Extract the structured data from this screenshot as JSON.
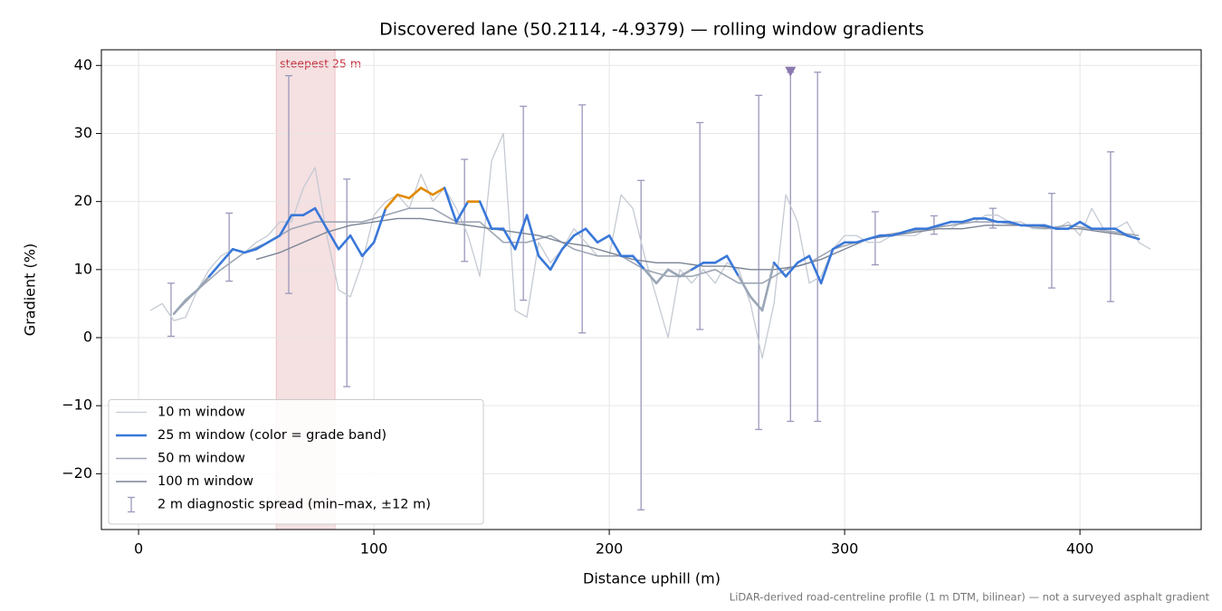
{
  "chart_data": {
    "type": "line",
    "title": "Discovered lane (50.2114, -4.9379) — rolling window gradients",
    "x_label": "Distance uphill (m)",
    "y_label": "Gradient (%)",
    "note": "LiDAR-derived road-centreline profile (1 m DTM, bilinear) — not a surveyed asphalt gradient",
    "xlim": [
      -15.8,
      451.5
    ],
    "ylim": [
      -28.2,
      42.3
    ],
    "xticks": [
      0,
      100,
      200,
      300,
      400
    ],
    "yticks": [
      {
        "value": -20,
        "label": "−20"
      },
      {
        "value": -10,
        "label": "−10"
      },
      0,
      10,
      20,
      30,
      40
    ],
    "grid": true,
    "legend": "lower left",
    "highlight": {
      "label": "steepest 25 m",
      "from": 58.5,
      "to": 83.5,
      "color": "#d9848c"
    },
    "series": [
      {
        "name": "10 m window",
        "color": "#c5cad3",
        "width": 1.3,
        "x": [
          5,
          10,
          15,
          20,
          25,
          30,
          35,
          40,
          45,
          50,
          55,
          60,
          65,
          70,
          75,
          80,
          85,
          90,
          95,
          100,
          105,
          110,
          115,
          120,
          125,
          130,
          135,
          140,
          145,
          150,
          155,
          160,
          165,
          170,
          175,
          180,
          185,
          190,
          195,
          200,
          205,
          210,
          215,
          220,
          225,
          230,
          235,
          240,
          245,
          250,
          255,
          260,
          265,
          270,
          275,
          280,
          285,
          290,
          295,
          300,
          305,
          310,
          315,
          320,
          325,
          330,
          335,
          340,
          345,
          350,
          355,
          360,
          365,
          370,
          375,
          380,
          385,
          390,
          395,
          400,
          405,
          410,
          415,
          420,
          425,
          430
        ],
        "values": [
          4,
          5,
          2.5,
          3,
          7,
          10,
          12,
          13,
          12.5,
          14,
          15,
          17,
          17,
          22,
          25,
          15,
          7,
          6,
          11,
          18,
          20,
          21,
          19,
          24,
          20,
          22,
          19,
          15,
          9,
          26,
          30,
          4,
          3,
          14,
          11,
          13,
          16,
          14,
          12,
          12,
          21,
          19,
          12,
          6,
          0,
          10,
          8,
          10,
          8,
          11,
          10,
          5,
          -3,
          5,
          21,
          17,
          8,
          9,
          13,
          15,
          15,
          14,
          14,
          15,
          15,
          15,
          16,
          16,
          16,
          17,
          17,
          18,
          18,
          17,
          17,
          16,
          16,
          16,
          17,
          15,
          19,
          16,
          16,
          17,
          14,
          13
        ]
      },
      {
        "name": "25 m window (color = grade band)",
        "color": "#3a78d8",
        "width": 2.6,
        "grade_bands": [
          {
            "below": 10,
            "color": "#9aa6b6"
          },
          {
            "below": 20,
            "color": "#3a78d8"
          },
          {
            "below": null,
            "color": "#e08a00"
          }
        ],
        "x": [
          15,
          20,
          25,
          30,
          35,
          40,
          45,
          50,
          55,
          60,
          65,
          70,
          75,
          80,
          85,
          90,
          95,
          100,
          105,
          110,
          115,
          120,
          125,
          130,
          135,
          140,
          145,
          150,
          155,
          160,
          165,
          170,
          175,
          180,
          185,
          190,
          195,
          200,
          205,
          210,
          215,
          220,
          225,
          230,
          235,
          240,
          245,
          250,
          255,
          260,
          265,
          270,
          275,
          280,
          285,
          290,
          295,
          300,
          305,
          310,
          315,
          320,
          325,
          330,
          335,
          340,
          345,
          350,
          355,
          360,
          365,
          370,
          375,
          380,
          385,
          390,
          395,
          400,
          405,
          410,
          415,
          420,
          425
        ],
        "values": [
          3.5,
          5.5,
          7,
          9,
          11,
          13,
          12.5,
          13,
          14,
          15,
          18,
          18,
          19,
          16,
          13,
          15,
          12,
          14,
          19,
          21,
          20.5,
          22,
          21,
          22,
          17,
          20,
          20,
          16,
          16,
          13,
          18,
          12,
          10,
          13,
          15,
          16,
          14,
          15,
          12,
          12,
          10,
          8,
          10,
          9,
          10,
          11,
          11,
          12,
          9,
          6,
          4,
          11,
          9,
          11,
          12,
          8,
          13,
          14,
          14,
          14.5,
          15,
          15,
          15.5,
          16,
          16,
          16.5,
          17,
          17,
          17.5,
          17.5,
          17,
          17,
          16.5,
          16.5,
          16.5,
          16,
          16,
          17,
          16,
          16,
          16,
          15,
          14.5
        ]
      },
      {
        "name": "50 m window",
        "color": "#9ea6b4",
        "width": 1.6,
        "x": [
          15,
          25,
          35,
          45,
          55,
          65,
          75,
          85,
          95,
          105,
          115,
          125,
          135,
          145,
          155,
          165,
          175,
          185,
          195,
          205,
          215,
          225,
          235,
          245,
          255,
          265,
          275,
          285,
          295,
          305,
          315,
          325,
          335,
          345,
          355,
          365,
          375,
          385,
          395,
          405,
          415,
          425
        ],
        "values": [
          3.5,
          7,
          10,
          12.5,
          14,
          16,
          17,
          17,
          17,
          18,
          19,
          19,
          17,
          17,
          14,
          14,
          15,
          13,
          12,
          12,
          10,
          9,
          9,
          10,
          8,
          8,
          10,
          11,
          13,
          14,
          15,
          15.5,
          16,
          16.5,
          17,
          17,
          16.5,
          16,
          16.5,
          16,
          15.5,
          15
        ]
      },
      {
        "name": "100 m window",
        "color": "#7a8494",
        "width": 1.4,
        "x": [
          50,
          60,
          70,
          80,
          90,
          100,
          110,
          120,
          130,
          140,
          150,
          160,
          170,
          180,
          190,
          200,
          210,
          220,
          230,
          240,
          250,
          260,
          270,
          280,
          290,
          300,
          310,
          320,
          330,
          340,
          350,
          360,
          370,
          380,
          390,
          400,
          410,
          420
        ],
        "values": [
          11.5,
          12.5,
          14,
          15.5,
          16.5,
          17,
          17.5,
          17.5,
          17,
          16.5,
          16,
          15.5,
          15,
          14,
          13.5,
          12.5,
          11.5,
          11,
          11,
          10.5,
          10.5,
          10,
          10,
          10.5,
          11.5,
          13,
          14.5,
          15,
          15.5,
          16,
          16,
          16.5,
          16.5,
          16.5,
          16,
          16,
          15.5,
          15
        ]
      }
    ],
    "spread": {
      "name": "2 m diagnostic spread (min–max, ±12 m)",
      "color": "#9a98bc",
      "x": [
        13.8,
        38.5,
        63.8,
        88.5,
        138.5,
        163.5,
        188.5,
        213.5,
        238.5,
        263.5,
        277,
        288.5,
        313,
        338,
        363,
        388,
        413
      ],
      "high": [
        8,
        18.3,
        38.5,
        23.3,
        26.2,
        34,
        34.2,
        23.1,
        31.6,
        35.6,
        39,
        39,
        18.5,
        17.9,
        19,
        21.2,
        27.3
      ],
      "low": [
        0.2,
        8.3,
        6.5,
        -7.2,
        11.2,
        5.5,
        0.7,
        -25.3,
        1.2,
        -13.5,
        -12.3,
        -12.3,
        10.7,
        15.2,
        16.1,
        7.3,
        5.3
      ]
    },
    "peak_marker": {
      "x": 277,
      "y": 39,
      "color": "#8a78b0"
    }
  }
}
